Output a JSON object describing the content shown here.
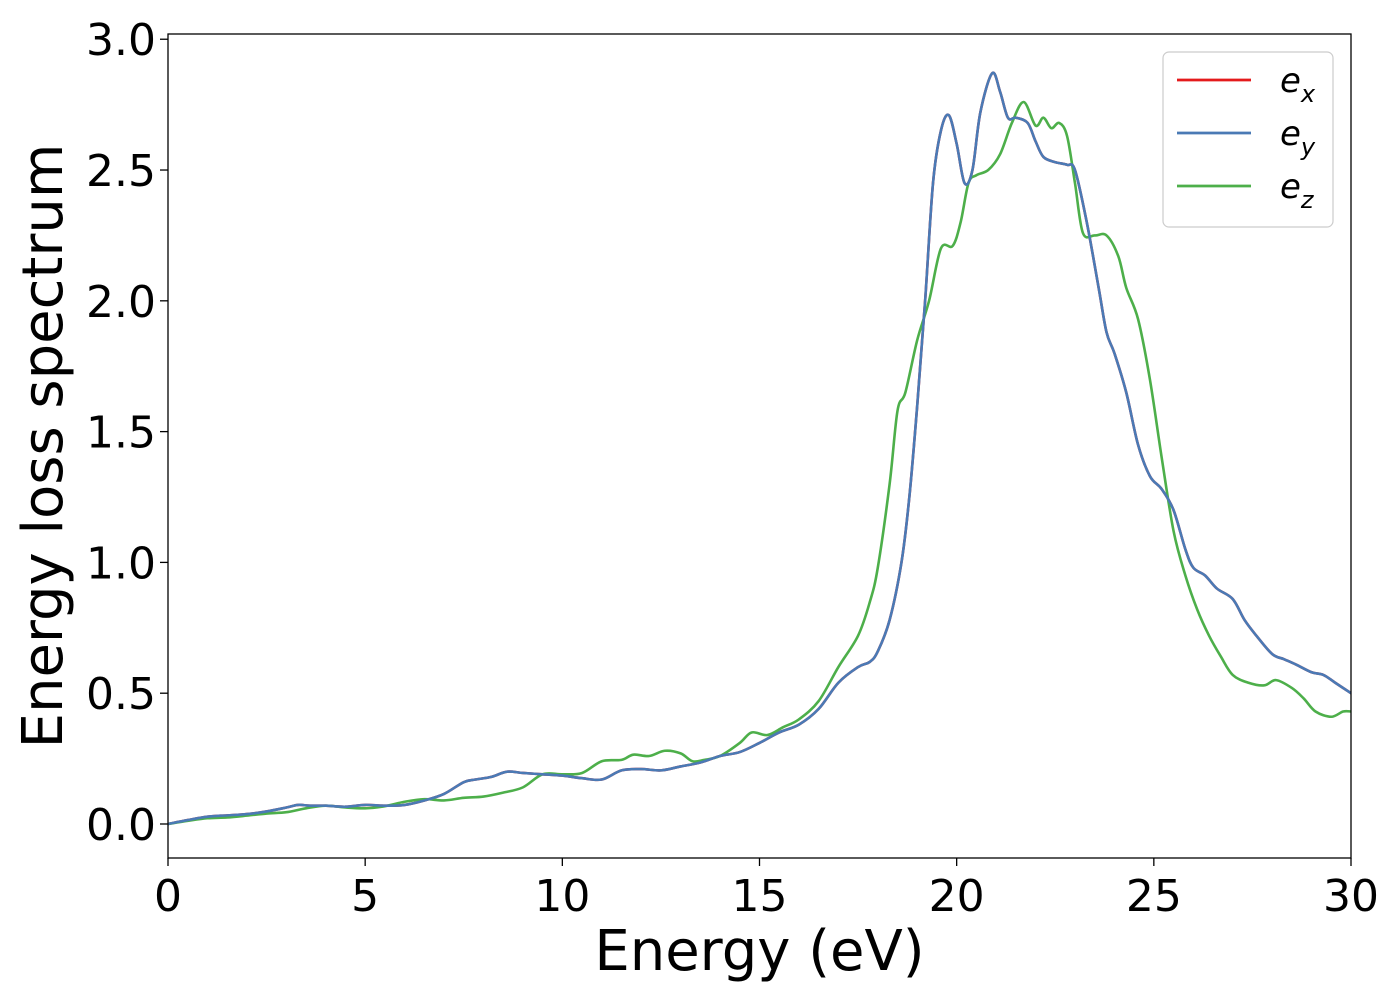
{
  "chart_data": {
    "type": "line",
    "xlabel": "Energy (eV)",
    "ylabel": "Energy loss spectrum",
    "xlim": [
      0,
      30
    ],
    "ylim": [
      -0.13,
      3.02
    ],
    "xticks": [
      0,
      5,
      10,
      15,
      20,
      25,
      30
    ],
    "xtick_labels": [
      "0",
      "5",
      "10",
      "15",
      "20",
      "25",
      "30"
    ],
    "yticks": [
      0.0,
      0.5,
      1.0,
      1.5,
      2.0,
      2.5,
      3.0
    ],
    "ytick_labels": [
      "0.0",
      "0.5",
      "1.0",
      "1.5",
      "2.0",
      "2.5",
      "3.0"
    ],
    "grid": false,
    "legend_position": "top-right",
    "colors": {
      "e_x": "#e41a1c",
      "e_y": "#4a7ab5",
      "e_z": "#4daf4a"
    },
    "series": [
      {
        "name": "e_x",
        "label_base": "e",
        "label_sub": "x",
        "x": [
          0,
          0.5,
          1,
          1.5,
          2,
          2.5,
          3,
          3.3,
          3.6,
          4,
          4.5,
          5,
          5.5,
          6,
          6.5,
          7,
          7.5,
          7.8,
          8.2,
          8.6,
          9,
          9.5,
          10,
          10.5,
          11,
          11.5,
          12,
          12.5,
          13,
          13.5,
          14,
          14.5,
          15,
          15.5,
          16,
          16.5,
          17,
          17.5,
          17.8,
          18,
          18.3,
          18.6,
          18.8,
          19,
          19.2,
          19.4,
          19.6,
          19.8,
          20,
          20.2,
          20.4,
          20.6,
          20.9,
          21.1,
          21.3,
          21.5,
          21.8,
          22,
          22.2,
          22.5,
          22.8,
          23,
          23.3,
          23.6,
          23.8,
          24,
          24.3,
          24.6,
          24.9,
          25.2,
          25.5,
          25.8,
          26,
          26.3,
          26.6,
          27,
          27.3,
          27.6,
          28,
          28.3,
          28.6,
          29,
          29.3,
          29.6,
          30
        ],
        "y": [
          0,
          0.015,
          0.028,
          0.033,
          0.038,
          0.048,
          0.063,
          0.073,
          0.07,
          0.07,
          0.066,
          0.073,
          0.07,
          0.073,
          0.09,
          0.115,
          0.16,
          0.17,
          0.18,
          0.2,
          0.195,
          0.19,
          0.185,
          0.175,
          0.17,
          0.205,
          0.21,
          0.205,
          0.22,
          0.235,
          0.26,
          0.275,
          0.31,
          0.35,
          0.38,
          0.44,
          0.54,
          0.6,
          0.62,
          0.66,
          0.78,
          1.0,
          1.25,
          1.6,
          2.0,
          2.45,
          2.65,
          2.71,
          2.6,
          2.45,
          2.5,
          2.72,
          2.87,
          2.8,
          2.7,
          2.7,
          2.68,
          2.61,
          2.55,
          2.53,
          2.52,
          2.5,
          2.3,
          2.05,
          1.88,
          1.8,
          1.65,
          1.45,
          1.33,
          1.28,
          1.2,
          1.05,
          0.98,
          0.95,
          0.9,
          0.86,
          0.78,
          0.72,
          0.65,
          0.63,
          0.61,
          0.58,
          0.57,
          0.54,
          0.5
        ]
      },
      {
        "name": "e_y",
        "label_base": "e",
        "label_sub": "y",
        "x": [
          0,
          0.5,
          1,
          1.5,
          2,
          2.5,
          3,
          3.3,
          3.6,
          4,
          4.5,
          5,
          5.5,
          6,
          6.5,
          7,
          7.5,
          7.8,
          8.2,
          8.6,
          9,
          9.5,
          10,
          10.5,
          11,
          11.5,
          12,
          12.5,
          13,
          13.5,
          14,
          14.5,
          15,
          15.5,
          16,
          16.5,
          17,
          17.5,
          17.8,
          18,
          18.3,
          18.6,
          18.8,
          19,
          19.2,
          19.4,
          19.6,
          19.8,
          20,
          20.2,
          20.4,
          20.6,
          20.9,
          21.1,
          21.3,
          21.5,
          21.8,
          22,
          22.2,
          22.5,
          22.8,
          23,
          23.3,
          23.6,
          23.8,
          24,
          24.3,
          24.6,
          24.9,
          25.2,
          25.5,
          25.8,
          26,
          26.3,
          26.6,
          27,
          27.3,
          27.6,
          28,
          28.3,
          28.6,
          29,
          29.3,
          29.6,
          30
        ],
        "y": [
          0,
          0.015,
          0.028,
          0.033,
          0.038,
          0.048,
          0.063,
          0.073,
          0.07,
          0.07,
          0.066,
          0.073,
          0.07,
          0.073,
          0.09,
          0.115,
          0.16,
          0.17,
          0.18,
          0.2,
          0.195,
          0.19,
          0.185,
          0.175,
          0.17,
          0.205,
          0.21,
          0.205,
          0.22,
          0.235,
          0.26,
          0.275,
          0.31,
          0.35,
          0.38,
          0.44,
          0.54,
          0.6,
          0.62,
          0.66,
          0.78,
          1.0,
          1.25,
          1.6,
          2.0,
          2.45,
          2.65,
          2.71,
          2.6,
          2.45,
          2.5,
          2.72,
          2.87,
          2.8,
          2.7,
          2.7,
          2.68,
          2.61,
          2.55,
          2.53,
          2.52,
          2.5,
          2.3,
          2.05,
          1.88,
          1.8,
          1.65,
          1.45,
          1.33,
          1.28,
          1.2,
          1.05,
          0.98,
          0.95,
          0.9,
          0.86,
          0.78,
          0.72,
          0.65,
          0.63,
          0.61,
          0.58,
          0.57,
          0.54,
          0.5
        ]
      },
      {
        "name": "e_z",
        "label_base": "e",
        "label_sub": "z",
        "x": [
          0,
          0.5,
          1,
          1.5,
          2,
          2.5,
          3,
          3.5,
          4,
          4.5,
          5,
          5.5,
          6,
          6.5,
          7,
          7.5,
          8,
          8.5,
          9,
          9.5,
          10,
          10.5,
          11,
          11.5,
          11.8,
          12.2,
          12.6,
          13,
          13.3,
          13.6,
          14,
          14.5,
          14.8,
          15.2,
          15.6,
          16,
          16.5,
          17,
          17.5,
          17.8,
          18,
          18.3,
          18.5,
          18.7,
          19,
          19.3,
          19.6,
          19.9,
          20.1,
          20.3,
          20.5,
          20.8,
          21.1,
          21.4,
          21.7,
          22,
          22.2,
          22.4,
          22.6,
          22.8,
          23,
          23.2,
          23.5,
          23.8,
          24.1,
          24.3,
          24.6,
          24.9,
          25.2,
          25.5,
          25.8,
          26.1,
          26.4,
          26.7,
          27,
          27.4,
          27.8,
          28.1,
          28.5,
          28.8,
          29.1,
          29.5,
          29.8,
          30
        ],
        "y": [
          0,
          0.012,
          0.022,
          0.025,
          0.032,
          0.04,
          0.045,
          0.06,
          0.07,
          0.063,
          0.06,
          0.068,
          0.085,
          0.095,
          0.09,
          0.1,
          0.105,
          0.12,
          0.14,
          0.19,
          0.19,
          0.195,
          0.24,
          0.245,
          0.265,
          0.26,
          0.28,
          0.27,
          0.24,
          0.245,
          0.26,
          0.31,
          0.35,
          0.34,
          0.37,
          0.4,
          0.47,
          0.6,
          0.72,
          0.85,
          0.98,
          1.3,
          1.58,
          1.65,
          1.85,
          2.0,
          2.2,
          2.21,
          2.3,
          2.45,
          2.48,
          2.5,
          2.56,
          2.68,
          2.76,
          2.67,
          2.7,
          2.66,
          2.68,
          2.63,
          2.45,
          2.26,
          2.25,
          2.25,
          2.17,
          2.05,
          1.93,
          1.7,
          1.4,
          1.12,
          0.95,
          0.82,
          0.72,
          0.64,
          0.57,
          0.54,
          0.53,
          0.55,
          0.52,
          0.48,
          0.43,
          0.41,
          0.43,
          0.43
        ]
      }
    ]
  }
}
